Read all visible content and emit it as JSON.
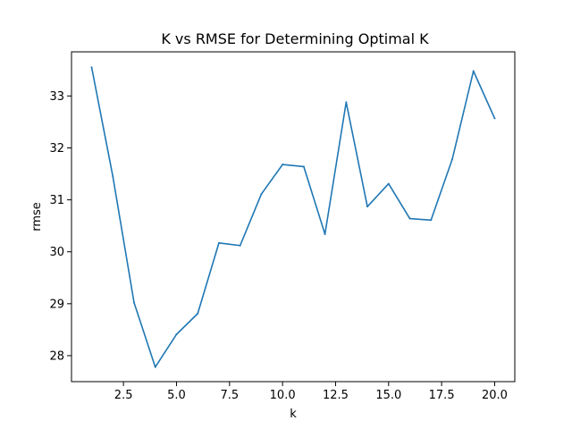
{
  "chart_data": {
    "type": "line",
    "title": "K vs RMSE for Determining Optimal K",
    "xlabel": "k",
    "ylabel": "rmse",
    "xlim": [
      0.05,
      20.95
    ],
    "ylim": [
      27.5,
      33.85
    ],
    "x_ticks": [
      2.5,
      5.0,
      7.5,
      10.0,
      12.5,
      15.0,
      17.5,
      20.0
    ],
    "x_tick_labels": [
      "2.5",
      "5.0",
      "7.5",
      "10.0",
      "12.5",
      "15.0",
      "17.5",
      "20.0"
    ],
    "y_ticks": [
      28,
      29,
      30,
      31,
      32,
      33
    ],
    "y_tick_labels": [
      "28",
      "29",
      "30",
      "31",
      "32",
      "33"
    ],
    "grid": false,
    "legend": "none",
    "series": [
      {
        "color": "#1f77b4",
        "x": [
          1,
          2,
          3,
          4,
          5,
          6,
          7,
          8,
          9,
          10,
          11,
          12,
          13,
          14,
          15,
          16,
          17,
          18,
          19,
          20
        ],
        "y": [
          33.55,
          31.45,
          29.02,
          27.78,
          28.41,
          28.81,
          30.17,
          30.12,
          31.11,
          31.68,
          31.64,
          30.34,
          32.88,
          30.87,
          31.31,
          30.64,
          30.61,
          31.78,
          33.48,
          32.57
        ]
      }
    ]
  }
}
